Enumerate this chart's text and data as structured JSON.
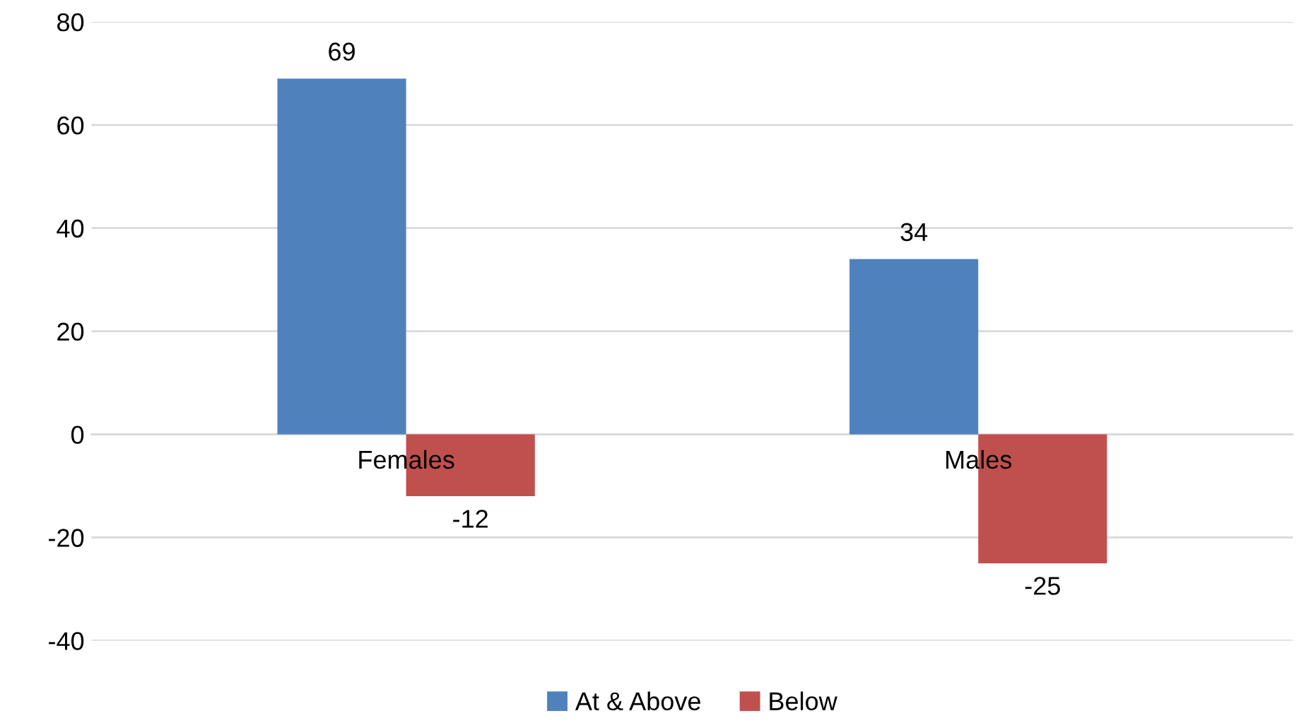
{
  "chart_data": {
    "type": "bar",
    "categories": [
      "Females",
      "Males"
    ],
    "series": [
      {
        "name": "At & Above",
        "color": "#4f81bd",
        "values": [
          69,
          34
        ]
      },
      {
        "name": "Below",
        "color": "#c0504d",
        "values": [
          -12,
          -25
        ]
      }
    ],
    "ylim": [
      -40,
      80
    ],
    "yticks": [
      -40,
      -20,
      0,
      20,
      40,
      60,
      80
    ],
    "grid": "y",
    "legend": "bottom",
    "data_labels": true
  }
}
